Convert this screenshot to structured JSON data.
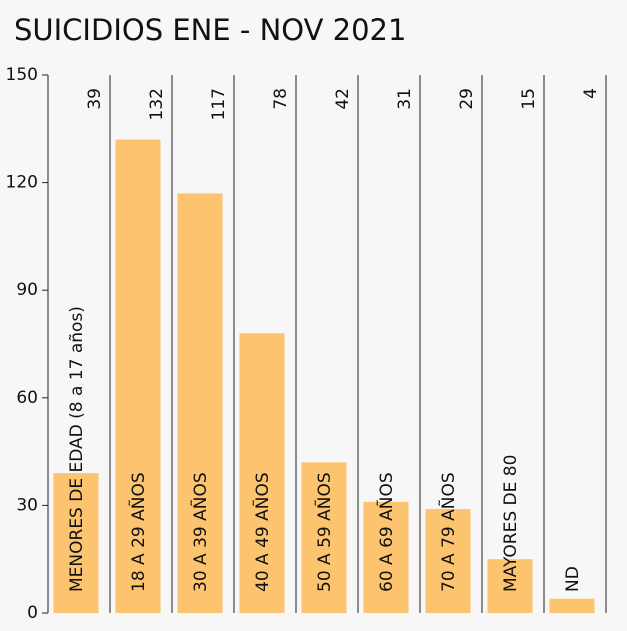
{
  "chart_data": {
    "type": "bar",
    "title": "SUICIDIOS ENE - NOV 2021",
    "categories": [
      "MENORES DE EDAD (8 a 17 años)",
      "18 A 29 AÑOS",
      "30 A 39 AÑOS",
      "40 A 49 AÑOS",
      "50 A 59 AÑOS",
      "60 A 69 AÑOS",
      "70 A 79 AÑOS",
      "MAYORES DE 80",
      "ND"
    ],
    "values": [
      39,
      132,
      117,
      78,
      42,
      31,
      29,
      15,
      4
    ],
    "color": "#fdc46f",
    "ylim": [
      0,
      150
    ],
    "yticks": [
      0,
      30,
      60,
      90,
      120,
      150
    ]
  }
}
